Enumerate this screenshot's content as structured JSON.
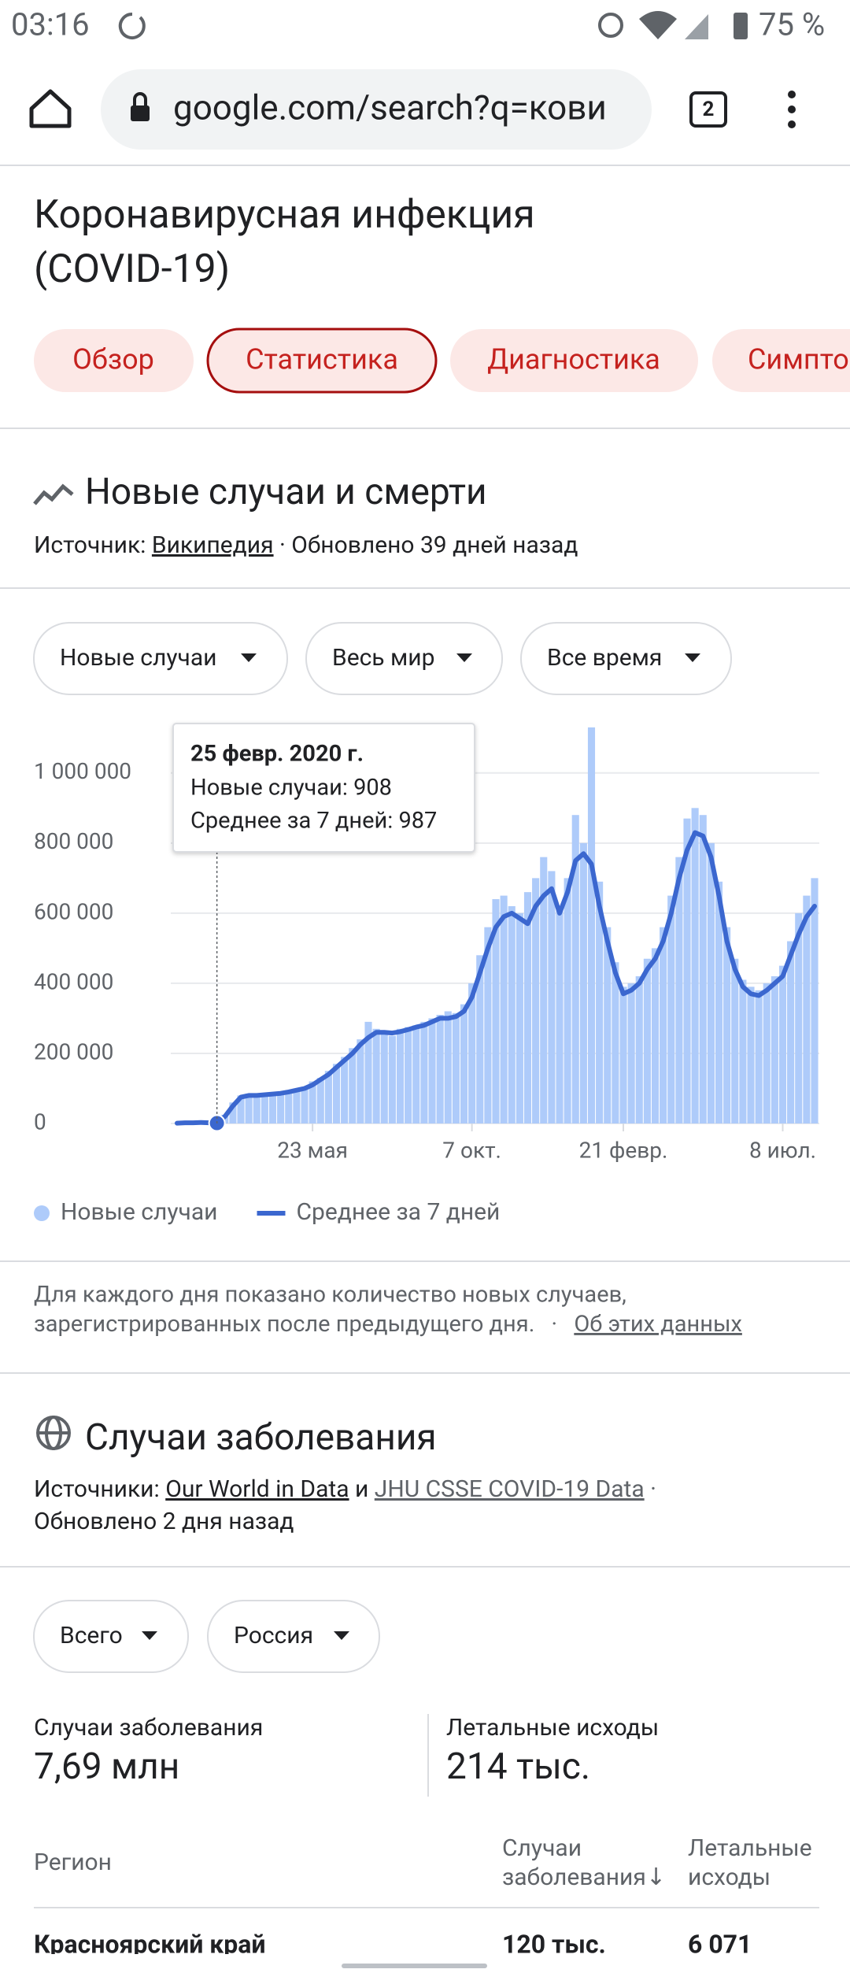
{
  "status_bar": {
    "time": "03:16",
    "battery": "75 %"
  },
  "browser": {
    "url": "google.com/search?q=кови",
    "tab_count": "2"
  },
  "header": {
    "title_lines": [
      "Коронавирусная инфекция",
      "(COVID-19)"
    ],
    "tabs": [
      "Обзор",
      "Статистика",
      "Диагностика",
      "Симпто"
    ]
  },
  "section1": {
    "title": "Новые случаи и смерти",
    "source_label": "Источник:",
    "source_link": "Википедия",
    "updated": "· Обновлено 39 дней назад",
    "filters": [
      "Новые случаи",
      "Весь мир",
      "Все время"
    ],
    "note_lines": [
      "Для каждого дня показано количество новых случаев,",
      "зарегистрированных после предыдущего дня."
    ],
    "note_separator": "·",
    "note_link": "Об этих данных"
  },
  "chart_data": {
    "type": "bar",
    "categories": [
      null,
      null,
      null,
      null,
      null,
      null,
      null,
      null,
      null,
      null,
      null,
      null,
      null,
      null,
      null,
      null,
      null,
      "23 мая",
      null,
      null,
      null,
      null,
      null,
      null,
      null,
      null,
      null,
      null,
      null,
      null,
      null,
      null,
      null,
      null,
      null,
      null,
      null,
      "7 окт.",
      null,
      null,
      null,
      null,
      null,
      null,
      null,
      null,
      null,
      null,
      null,
      null,
      null,
      null,
      null,
      null,
      null,
      null,
      "21 февр.",
      null,
      null,
      null,
      null,
      null,
      null,
      null,
      null,
      null,
      null,
      null,
      null,
      null,
      null,
      null,
      null,
      null,
      null,
      null,
      "8 июл.",
      null,
      null,
      null,
      null
    ],
    "series": [
      {
        "name": "Новые случаи",
        "type": "bar",
        "color": "#aecbfa",
        "values": [
          1000,
          2000,
          2000,
          3000,
          3000,
          1000,
          25000,
          60000,
          80000,
          85000,
          82000,
          85000,
          88000,
          90000,
          95000,
          100000,
          105000,
          120000,
          130000,
          150000,
          170000,
          190000,
          215000,
          240000,
          290000,
          270000,
          265000,
          250000,
          270000,
          275000,
          280000,
          290000,
          300000,
          310000,
          320000,
          315000,
          340000,
          400000,
          480000,
          560000,
          640000,
          650000,
          620000,
          600000,
          660000,
          700000,
          760000,
          720000,
          620000,
          700000,
          880000,
          800000,
          1130000,
          690000,
          560000,
          460000,
          390000,
          400000,
          420000,
          470000,
          500000,
          560000,
          650000,
          760000,
          870000,
          900000,
          880000,
          800000,
          690000,
          560000,
          470000,
          410000,
          390000,
          380000,
          400000,
          420000,
          450000,
          520000,
          600000,
          650000,
          700000
        ]
      },
      {
        "name": "Среднее за 7 дней",
        "type": "line",
        "color": "#3b67cf",
        "values": [
          1000,
          2000,
          2000,
          3000,
          2000,
          1000,
          20000,
          50000,
          75000,
          80000,
          80000,
          82000,
          84000,
          86000,
          90000,
          95000,
          100000,
          110000,
          125000,
          140000,
          160000,
          180000,
          200000,
          225000,
          245000,
          260000,
          260000,
          258000,
          262000,
          268000,
          275000,
          280000,
          290000,
          300000,
          300000,
          305000,
          320000,
          360000,
          430000,
          500000,
          560000,
          590000,
          600000,
          585000,
          570000,
          620000,
          650000,
          670000,
          600000,
          660000,
          750000,
          770000,
          740000,
          620000,
          520000,
          430000,
          370000,
          380000,
          400000,
          440000,
          470000,
          520000,
          600000,
          700000,
          780000,
          830000,
          820000,
          760000,
          650000,
          520000,
          440000,
          390000,
          370000,
          365000,
          380000,
          400000,
          420000,
          480000,
          540000,
          590000,
          620000
        ]
      }
    ],
    "ylim": [
      0,
      1150000
    ],
    "yticks": [
      0,
      {
        "value": 200000,
        "label": "200 000"
      },
      {
        "value": 400000,
        "label": "400 000"
      },
      {
        "value": 600000,
        "label": "600 000"
      },
      {
        "value": 800000,
        "label": "800 000"
      },
      {
        "value": 1000000,
        "label": "1 000 000"
      }
    ],
    "grid": true,
    "tooltip": {
      "title": "25 февр. 2020 г.",
      "lines": [
        "Новые случаи: 908",
        "Среднее за 7 дней: 987"
      ]
    }
  },
  "section2": {
    "title": "Случаи заболевания",
    "sources_label": "Источники:",
    "source_links": [
      "Our World in Data",
      "JHU CSSE COVID-19 Data"
    ],
    "conjunction": "и",
    "separator": "·",
    "updated": "Обновлено 2 дня назад",
    "filters": [
      "Всего",
      "Россия"
    ],
    "stats": [
      {
        "label": "Случаи заболевания",
        "value": "7,69 млн"
      },
      {
        "label": "Летальные исходы",
        "value": "214 тыс."
      }
    ],
    "table": {
      "header": [
        "Регион",
        [
          "Случаи",
          "заболевания↓"
        ],
        [
          "Летальные",
          "исходы"
        ]
      ],
      "rows": [
        [
          "Красноярский край",
          "120 тыс.",
          "6 071"
        ]
      ]
    }
  }
}
